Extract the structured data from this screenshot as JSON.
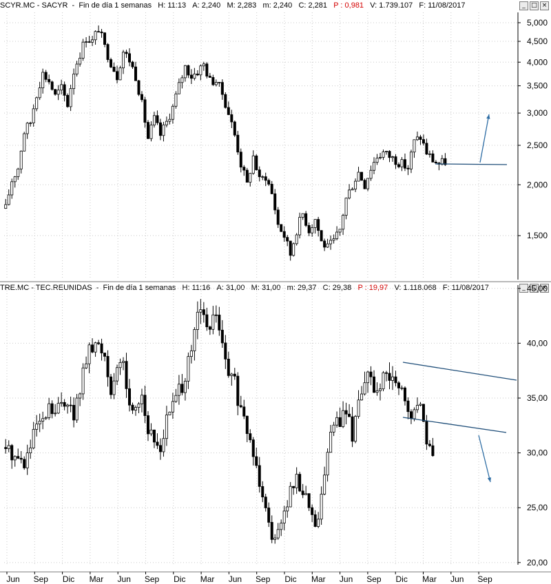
{
  "top_header": {
    "symbol": "SCYR.MC - SACYR",
    "period": "Fin de día 1 semanas",
    "hour": "H: 11:13",
    "open": "A: 2,240",
    "high": "M: 2,283",
    "low": "m: 2,240",
    "close": "C: 2,281",
    "change": "P : 0,981",
    "volume": "V: 1.739.107",
    "date": "F: 11/08/2017"
  },
  "bottom_header": {
    "symbol": "TRE.MC - TEC.REUNIDAS",
    "period": "Fin de día 1 semanas",
    "hour": "H: 11:16",
    "open": "A: 31,00",
    "high": "M: 31,00",
    "low": "m: 29,37",
    "close": "C: 29,38",
    "change": "P : 19,97",
    "volume": "V: 1.118.068",
    "date": "F: 11/08/2017"
  },
  "window_buttons": {
    "minimize": "_",
    "restore": "□",
    "close": "×"
  },
  "colors": {
    "candle": "#000000",
    "grid": "#c8c8c8",
    "trendline": "#1f4e79",
    "arrow": "#2e6da4",
    "change": "#d40000"
  },
  "x_axis": {
    "labels": [
      "Jun",
      "Sep",
      "Dic",
      "Mar",
      "Jun",
      "Sep",
      "Dic",
      "Mar",
      "Jun",
      "Sep",
      "Dic",
      "Mar",
      "Jun",
      "Sep",
      "Dic",
      "Mar",
      "Jun",
      "Sep"
    ]
  },
  "chart_data": [
    {
      "type": "candlestick",
      "symbol": "SCYR.MC",
      "scale": "log",
      "ylim": [
        1.17,
        5.3
      ],
      "y_ticks": [
        "1,500",
        "2,000",
        "2,500",
        "3,000",
        "3,500",
        "4,000",
        "4,500",
        "5,000"
      ],
      "grid": true,
      "period": "weekly",
      "anchors": [
        [
          0,
          1.75
        ],
        [
          2,
          2.05
        ],
        [
          4,
          2.2
        ],
        [
          6,
          2.7
        ],
        [
          8,
          2.85
        ],
        [
          10,
          3.35
        ],
        [
          12,
          3.75
        ],
        [
          14,
          3.6
        ],
        [
          16,
          3.3
        ],
        [
          18,
          3.45
        ],
        [
          20,
          3.15
        ],
        [
          22,
          3.8
        ],
        [
          24,
          4.2
        ],
        [
          26,
          4.6
        ],
        [
          28,
          4.5
        ],
        [
          30,
          4.85
        ],
        [
          32,
          4.35
        ],
        [
          34,
          4.0
        ],
        [
          36,
          3.7
        ],
        [
          38,
          4.25
        ],
        [
          40,
          4.05
        ],
        [
          42,
          3.7
        ],
        [
          44,
          3.15
        ],
        [
          46,
          2.6
        ],
        [
          48,
          2.9
        ],
        [
          50,
          2.65
        ],
        [
          52,
          2.85
        ],
        [
          54,
          3.1
        ],
        [
          56,
          3.5
        ],
        [
          58,
          3.9
        ],
        [
          60,
          3.7
        ],
        [
          62,
          3.8
        ],
        [
          64,
          3.95
        ],
        [
          66,
          3.6
        ],
        [
          68,
          3.6
        ],
        [
          70,
          3.35
        ],
        [
          72,
          3.0
        ],
        [
          74,
          2.65
        ],
        [
          76,
          2.25
        ],
        [
          78,
          2.0
        ],
        [
          80,
          2.35
        ],
        [
          82,
          2.05
        ],
        [
          84,
          2.1
        ],
        [
          86,
          1.9
        ],
        [
          88,
          1.6
        ],
        [
          90,
          1.5
        ],
        [
          92,
          1.35
        ],
        [
          94,
          1.55
        ],
        [
          96,
          1.7
        ],
        [
          98,
          1.55
        ],
        [
          100,
          1.65
        ],
        [
          102,
          1.45
        ],
        [
          104,
          1.4
        ],
        [
          106,
          1.45
        ],
        [
          108,
          1.55
        ],
        [
          110,
          1.85
        ],
        [
          112,
          2.0
        ],
        [
          114,
          2.15
        ],
        [
          116,
          2.0
        ],
        [
          118,
          2.2
        ],
        [
          120,
          2.35
        ],
        [
          122,
          2.4
        ],
        [
          124,
          2.35
        ],
        [
          126,
          2.3
        ],
        [
          128,
          2.25
        ],
        [
          130,
          2.2
        ],
        [
          132,
          2.55
        ],
        [
          134,
          2.62
        ],
        [
          136,
          2.4
        ],
        [
          138,
          2.3
        ],
        [
          140,
          2.25
        ],
        [
          142,
          2.28
        ]
      ]
    },
    {
      "type": "candlestick",
      "symbol": "TRE.MC",
      "scale": "linear",
      "ylim": [
        19.8,
        45.3
      ],
      "y_ticks": [
        "20,00",
        "25,00",
        "30,00",
        "35,00",
        "40,00",
        "45,00"
      ],
      "grid": true,
      "period": "weekly",
      "anchors": [
        [
          0,
          30.5
        ],
        [
          2,
          30.0
        ],
        [
          4,
          29.5
        ],
        [
          6,
          29.0
        ],
        [
          8,
          30.5
        ],
        [
          10,
          32.5
        ],
        [
          12,
          32.5
        ],
        [
          14,
          34.0
        ],
        [
          16,
          33.5
        ],
        [
          18,
          34.5
        ],
        [
          20,
          35.0
        ],
        [
          22,
          33.0
        ],
        [
          24,
          36.0
        ],
        [
          26,
          38.5
        ],
        [
          28,
          39.5
        ],
        [
          30,
          39.8
        ],
        [
          32,
          39.0
        ],
        [
          34,
          36.0
        ],
        [
          36,
          37.0
        ],
        [
          38,
          38.5
        ],
        [
          40,
          34.0
        ],
        [
          42,
          34.5
        ],
        [
          44,
          35.5
        ],
        [
          46,
          32.0
        ],
        [
          48,
          31.0
        ],
        [
          50,
          30.5
        ],
        [
          52,
          33.0
        ],
        [
          54,
          34.5
        ],
        [
          56,
          35.5
        ],
        [
          58,
          37.0
        ],
        [
          60,
          39.0
        ],
        [
          62,
          42.5
        ],
        [
          64,
          42.5
        ],
        [
          66,
          41.0
        ],
        [
          68,
          43.0
        ],
        [
          70,
          39.5
        ],
        [
          72,
          37.0
        ],
        [
          74,
          36.5
        ],
        [
          76,
          33.5
        ],
        [
          78,
          32.0
        ],
        [
          80,
          30.0
        ],
        [
          82,
          27.5
        ],
        [
          84,
          25.5
        ],
        [
          86,
          22.0
        ],
        [
          88,
          23.5
        ],
        [
          90,
          24.5
        ],
        [
          92,
          26.5
        ],
        [
          94,
          27.5
        ],
        [
          96,
          26.5
        ],
        [
          98,
          25.5
        ],
        [
          100,
          23.0
        ],
        [
          102,
          26.0
        ],
        [
          104,
          30.5
        ],
        [
          106,
          32.5
        ],
        [
          108,
          33.0
        ],
        [
          110,
          34.0
        ],
        [
          112,
          31.5
        ],
        [
          114,
          35.0
        ],
        [
          116,
          37.0
        ],
        [
          118,
          36.5
        ],
        [
          120,
          35.5
        ],
        [
          122,
          36.5
        ],
        [
          124,
          37.0
        ],
        [
          126,
          36.0
        ],
        [
          128,
          35.5
        ],
        [
          130,
          33.5
        ],
        [
          132,
          33.5
        ],
        [
          134,
          34.5
        ],
        [
          136,
          31.5
        ],
        [
          138,
          29.4
        ]
      ]
    }
  ]
}
